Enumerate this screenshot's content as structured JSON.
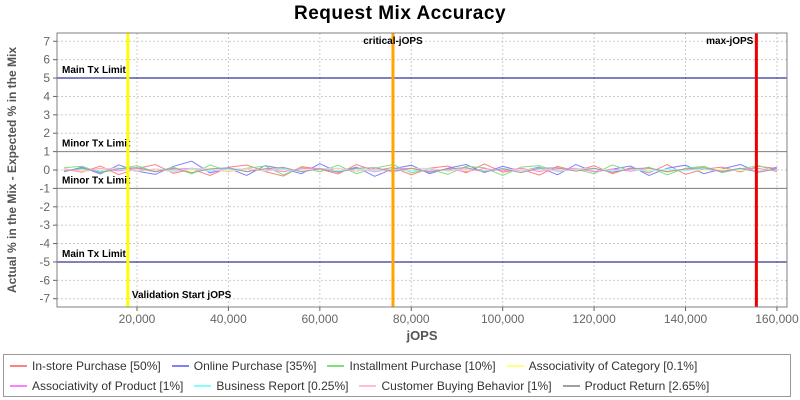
{
  "title": "Request Mix Accuracy",
  "chart_data": {
    "type": "line",
    "title": "Request Mix Accuracy",
    "xlabel": "jOPS",
    "ylabel": "Actual % in the Mix - Expected % in the Mix",
    "xlim": [
      2500,
      162200
    ],
    "ylim": [
      -7.45,
      7.45
    ],
    "x_ticks": [
      20000,
      40000,
      60000,
      80000,
      100000,
      120000,
      140000,
      160000
    ],
    "y_ticks": [
      -7,
      -6,
      -5,
      -4,
      -3,
      -2,
      -1,
      0,
      1,
      2,
      3,
      4,
      5,
      6,
      7
    ],
    "grid": true,
    "legend_position": "bottom",
    "legend_items_per_row": 4,
    "grid_color": "#cccccc",
    "border_color": "#808080",
    "tick_label_color": "#666666",
    "axis_label_color": "#555555",
    "annotation_color": "#000000",
    "limit_lines": [
      {
        "label": "Main Tx Limit",
        "y": 5,
        "color": "#000080"
      },
      {
        "label": "Minor Tx Limit",
        "y": 1,
        "color": "#808080"
      },
      {
        "label": "Minor Tx Limit",
        "y": -1,
        "color": "#808080"
      },
      {
        "label": "Main Tx Limit",
        "y": -5,
        "color": "#000080"
      }
    ],
    "marker_lines": [
      {
        "label": "Validation Start jOPS",
        "x": 18000,
        "color": "#ffff00",
        "label_anchor": "start",
        "label_v": "bottom"
      },
      {
        "label": "critical-jOPS",
        "x": 76000,
        "color": "#ffa500",
        "label_anchor": "middle",
        "label_v": "top"
      },
      {
        "label": "max-jOPS",
        "x": 155500,
        "color": "#ee0000",
        "label_anchor": "end",
        "label_v": "top"
      }
    ],
    "x": [
      4000,
      8000,
      12000,
      16000,
      20000,
      24000,
      28000,
      32000,
      36000,
      40000,
      44000,
      48000,
      52000,
      56000,
      60000,
      64000,
      68000,
      72000,
      76000,
      80000,
      84000,
      88000,
      92000,
      96000,
      100000,
      104000,
      108000,
      112000,
      116000,
      120000,
      124000,
      128000,
      132000,
      136000,
      140000,
      144000,
      148000,
      152000,
      156000,
      160000
    ],
    "series": [
      {
        "name": "In-store Purchase [50%]",
        "color": "#ff8080",
        "values": [
          0.05,
          -0.12,
          0.22,
          -0.25,
          0.08,
          0.3,
          -0.18,
          0.05,
          -0.3,
          0.15,
          0.27,
          -0.08,
          -0.33,
          0.18,
          0.05,
          -0.22,
          0.3,
          -0.05,
          0.14,
          -0.26,
          0.1,
          0.22,
          -0.15,
          0.33,
          -0.12,
          0.06,
          -0.28,
          0.2,
          -0.06,
          0.24,
          -0.2,
          0.12,
          -0.16,
          0.3,
          -0.24,
          0.05,
          0.16,
          -0.1,
          0.2,
          0.08
        ]
      },
      {
        "name": "Online Purchase [35%]",
        "color": "#8080ff",
        "values": [
          -0.1,
          0.16,
          -0.22,
          0.28,
          -0.06,
          -0.24,
          0.2,
          0.48,
          -0.16,
          0.1,
          -0.3,
          0.24,
          0.06,
          -0.2,
          0.34,
          -0.12,
          0.16,
          -0.34,
          0.06,
          0.26,
          -0.2,
          0.1,
          0.3,
          -0.14,
          0.2,
          -0.06,
          0.16,
          -0.26,
          0.3,
          -0.1,
          0.05,
          0.22,
          -0.3,
          0.1,
          0.26,
          -0.2,
          0.06,
          0.3,
          -0.12,
          0.15
        ]
      },
      {
        "name": "Installment Purchase [10%]",
        "color": "#80e080",
        "values": [
          0.12,
          0.2,
          -0.16,
          0.06,
          0.24,
          -0.1,
          0.16,
          -0.22,
          0.28,
          -0.06,
          0.1,
          0.22,
          -0.26,
          0.14,
          -0.1,
          0.26,
          -0.2,
          0.1,
          0.3,
          -0.16,
          0.06,
          -0.24,
          0.2,
          0.12,
          -0.3,
          0.16,
          0.24,
          -0.1,
          0.05,
          -0.2,
          0.28,
          -0.06,
          0.16,
          -0.26,
          0.1,
          0.2,
          -0.14,
          0.06,
          0.24,
          -0.1
        ]
      },
      {
        "name": "Associativity of Category [0.1%]",
        "color": "#ffff80",
        "values": [
          0.02,
          -0.03,
          0.04,
          -0.02,
          0.03,
          -0.04,
          0.02,
          -0.01,
          0.04,
          -0.03,
          0.02,
          0.03,
          -0.04,
          0.01,
          0.03,
          -0.02,
          0.04,
          -0.03,
          0.01,
          0.03,
          -0.04,
          0.02,
          -0.03,
          0.04,
          -0.01,
          0.02,
          -0.03,
          0.04,
          -0.02,
          0.01,
          0.03,
          -0.04,
          0.02,
          -0.01,
          0.03,
          -0.03,
          0.04,
          -0.02,
          0.01,
          0.02
        ]
      },
      {
        "name": "Associativity of Product [1%]",
        "color": "#ff80ff",
        "values": [
          0.06,
          -0.08,
          0.1,
          -0.05,
          0.08,
          -0.1,
          0.05,
          0.09,
          -0.07,
          0.1,
          -0.08,
          0.06,
          -0.1,
          0.07,
          0.1,
          -0.06,
          0.08,
          -0.09,
          0.05,
          0.1,
          -0.07,
          0.05,
          -0.1,
          0.08,
          -0.05,
          0.1,
          -0.08,
          0.06,
          0.09,
          -0.1,
          0.05,
          -0.07,
          0.1,
          -0.08,
          0.05,
          0.07,
          -0.1,
          0.06,
          0.08,
          -0.06
        ]
      },
      {
        "name": "Business Report [0.25%]",
        "color": "#80ffff",
        "values": [
          -0.04,
          0.05,
          -0.06,
          0.04,
          -0.05,
          0.06,
          -0.03,
          0.05,
          -0.06,
          0.04,
          0.06,
          -0.05,
          0.03,
          -0.06,
          0.05,
          -0.04,
          0.06,
          -0.05,
          0.04,
          -0.06,
          0.05,
          -0.03,
          0.06,
          -0.05,
          0.04,
          -0.06,
          0.05,
          -0.04,
          0.03,
          0.06,
          -0.05,
          0.04,
          -0.06,
          0.05,
          -0.03,
          0.06,
          -0.05,
          0.04,
          -0.06,
          0.05
        ]
      },
      {
        "name": "Customer Buying Behavior [1%]",
        "color": "#ffc0cb",
        "values": [
          0.08,
          -0.1,
          0.07,
          0.11,
          -0.08,
          0.06,
          -0.11,
          0.09,
          0.05,
          -0.1,
          0.08,
          -0.06,
          0.11,
          -0.09,
          0.06,
          0.1,
          -0.07,
          0.05,
          -0.11,
          0.08,
          0.1,
          -0.06,
          0.07,
          -0.1,
          0.09,
          -0.05,
          0.11,
          -0.08,
          0.06,
          0.1,
          -0.09,
          0.05,
          0.08,
          -0.11,
          0.07,
          0.1,
          -0.06,
          0.09,
          -0.08,
          0.06
        ]
      },
      {
        "name": "Product Return [2.65%]",
        "color": "#a0a0a0",
        "values": [
          -0.06,
          0.09,
          -0.12,
          0.07,
          0.13,
          -0.08,
          0.1,
          -0.14,
          0.06,
          0.12,
          -0.09,
          0.07,
          0.14,
          -0.1,
          0.06,
          -0.13,
          0.09,
          0.12,
          -0.07,
          0.1,
          -0.12,
          0.06,
          0.13,
          -0.09,
          0.07,
          -0.14,
          0.1,
          0.12,
          -0.06,
          0.09,
          -0.13,
          0.07,
          0.11,
          -0.1,
          0.06,
          0.13,
          -0.08,
          0.1,
          -0.12,
          0.07
        ]
      }
    ]
  }
}
